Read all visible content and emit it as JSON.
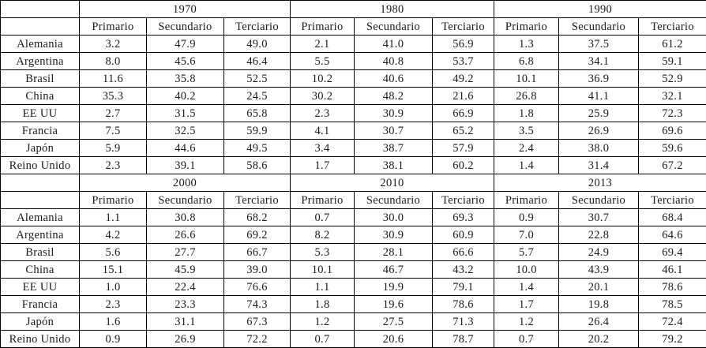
{
  "colors": {
    "border": "#000000",
    "background": "#ffffff",
    "text": "#1a1a1a"
  },
  "chart_data": {
    "type": "table",
    "sectors": [
      "Primario",
      "Secundario",
      "Terciario"
    ],
    "countries": [
      "Alemania",
      "Argentina",
      "Brasil",
      "China",
      "EE UU",
      "Francia",
      "Japón",
      "Reino Unido"
    ],
    "blocks": [
      {
        "years": [
          "1970",
          "1980",
          "1990"
        ],
        "rows": [
          {
            "country": "Alemania",
            "values": [
              "3.2",
              "47.9",
              "49.0",
              "2.1",
              "41.0",
              "56.9",
              "1.3",
              "37.5",
              "61.2"
            ]
          },
          {
            "country": "Argentina",
            "values": [
              "8.0",
              "45.6",
              "46.4",
              "5.5",
              "40.8",
              "53.7",
              "6.8",
              "34.1",
              "59.1"
            ]
          },
          {
            "country": "Brasil",
            "values": [
              "11.6",
              "35.8",
              "52.5",
              "10.2",
              "40.6",
              "49.2",
              "10.1",
              "36.9",
              "52.9"
            ]
          },
          {
            "country": "China",
            "values": [
              "35.3",
              "40.2",
              "24.5",
              "30.2",
              "48.2",
              "21.6",
              "26.8",
              "41.1",
              "32.1"
            ]
          },
          {
            "country": "EE UU",
            "values": [
              "2.7",
              "31.5",
              "65.8",
              "2.3",
              "30.9",
              "66.9",
              "1.8",
              "25.9",
              "72.3"
            ]
          },
          {
            "country": "Francia",
            "values": [
              "7.5",
              "32.5",
              "59.9",
              "4.1",
              "30.7",
              "65.2",
              "3.5",
              "26.9",
              "69.6"
            ]
          },
          {
            "country": "Japón",
            "values": [
              "5.9",
              "44.6",
              "49.5",
              "3.4",
              "38.7",
              "57.9",
              "2.4",
              "38.0",
              "59.6"
            ]
          },
          {
            "country": "Reino Unido",
            "values": [
              "2.3",
              "39.1",
              "58.6",
              "1.7",
              "38.1",
              "60.2",
              "1.4",
              "31.4",
              "67.2"
            ]
          }
        ]
      },
      {
        "years": [
          "2000",
          "2010",
          "2013"
        ],
        "rows": [
          {
            "country": "Alemania",
            "values": [
              "1.1",
              "30.8",
              "68.2",
              "0.7",
              "30.0",
              "69.3",
              "0.9",
              "30.7",
              "68.4"
            ]
          },
          {
            "country": "Argentina",
            "values": [
              "4.2",
              "26.6",
              "69.2",
              "8.2",
              "30.9",
              "60.9",
              "7.0",
              "22.8",
              "64.6"
            ]
          },
          {
            "country": "Brasil",
            "values": [
              "5.6",
              "27.7",
              "66.7",
              "5.3",
              "28.1",
              "66.6",
              "5.7",
              "24.9",
              "69.4"
            ]
          },
          {
            "country": "China",
            "values": [
              "15.1",
              "45.9",
              "39.0",
              "10.1",
              "46.7",
              "43.2",
              "10.0",
              "43.9",
              "46.1"
            ]
          },
          {
            "country": "EE UU",
            "values": [
              "1.0",
              "22.4",
              "76.6",
              "1.1",
              "19.9",
              "79.1",
              "1.4",
              "20.1",
              "78.6"
            ]
          },
          {
            "country": "Francia",
            "values": [
              "2.3",
              "23.3",
              "74.3",
              "1.8",
              "19.6",
              "78.6",
              "1.7",
              "19.8",
              "78.5"
            ]
          },
          {
            "country": "Japón",
            "values": [
              "1.6",
              "31.1",
              "67.3",
              "1.2",
              "27.5",
              "71.3",
              "1.2",
              "26.4",
              "72.4"
            ]
          },
          {
            "country": "Reino Unido",
            "values": [
              "0.9",
              "26.9",
              "72.2",
              "0.7",
              "20.6",
              "78.7",
              "0.7",
              "20.2",
              "79.2"
            ]
          }
        ]
      }
    ]
  }
}
